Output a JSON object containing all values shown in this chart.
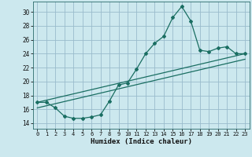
{
  "xlabel": "Humidex (Indice chaleur)",
  "xlim": [
    -0.5,
    23.5
  ],
  "ylim": [
    13.2,
    31.5
  ],
  "yticks": [
    14,
    16,
    18,
    20,
    22,
    24,
    26,
    28,
    30
  ],
  "xticks": [
    0,
    1,
    2,
    3,
    4,
    5,
    6,
    7,
    8,
    9,
    10,
    11,
    12,
    13,
    14,
    15,
    16,
    17,
    18,
    19,
    20,
    21,
    22,
    23
  ],
  "bg_color": "#cce8ee",
  "grid_color": "#99bbcc",
  "line_color": "#1a6e62",
  "hours": [
    0,
    1,
    2,
    3,
    4,
    5,
    6,
    7,
    8,
    9,
    10,
    11,
    12,
    13,
    14,
    15,
    16,
    17,
    18,
    19,
    20,
    21,
    22,
    23
  ],
  "values": [
    17.0,
    17.0,
    16.2,
    15.0,
    14.7,
    14.7,
    14.9,
    15.2,
    17.2,
    19.5,
    19.8,
    21.8,
    24.0,
    25.5,
    26.5,
    29.2,
    30.8,
    28.7,
    24.5,
    24.3,
    24.8,
    25.0,
    24.0,
    24.0
  ],
  "ref_line1_x": [
    0,
    23
  ],
  "ref_line1_y": [
    17.0,
    24.0
  ],
  "ref_line2_x": [
    0,
    23
  ],
  "ref_line2_y": [
    16.2,
    23.2
  ]
}
